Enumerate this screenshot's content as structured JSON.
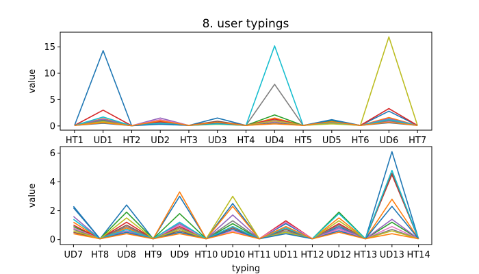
{
  "chart_data": {
    "type": "line",
    "title": "8. user typings",
    "palette": [
      "#1f77b4",
      "#ff7f0e",
      "#2ca02c",
      "#d62728",
      "#9467bd",
      "#8c564b",
      "#e377c2",
      "#7f7f7f",
      "#bcbd22",
      "#17becf"
    ],
    "subplots": [
      {
        "categories": [
          "HT1",
          "UD1",
          "HT2",
          "UD2",
          "HT3",
          "UD3",
          "HT4",
          "UD4",
          "HT5",
          "UD5",
          "HT6",
          "UD6",
          "HT7"
        ],
        "xlabel": "",
        "ylabel": "value",
        "ylim": [
          -0.8,
          17.8
        ],
        "yticks": [
          0,
          5,
          10,
          15
        ],
        "series": [
          {
            "values": [
              0.1,
              14.3,
              0.05,
              0.9,
              0.1,
              1.5,
              0.1,
              0.8,
              0.1,
              1.2,
              0.1,
              2.8,
              0.1
            ]
          },
          {
            "values": [
              0.1,
              1.4,
              0.05,
              0.7,
              0.1,
              0.5,
              0.1,
              1.5,
              0.1,
              0.8,
              0.1,
              1.6,
              0.1
            ]
          },
          {
            "values": [
              0.1,
              1.1,
              0.05,
              0.6,
              0.1,
              0.4,
              0.1,
              2.1,
              0.1,
              0.9,
              0.1,
              1.1,
              0.1
            ]
          },
          {
            "values": [
              0.1,
              3.0,
              0.05,
              0.8,
              0.1,
              0.6,
              0.1,
              1.3,
              0.1,
              0.7,
              0.1,
              3.3,
              0.1
            ]
          },
          {
            "values": [
              0.1,
              1.3,
              0.05,
              1.5,
              0.1,
              0.5,
              0.1,
              1.1,
              0.1,
              0.6,
              0.1,
              1.4,
              0.1
            ]
          },
          {
            "values": [
              0.1,
              0.7,
              0.05,
              0.5,
              0.1,
              0.9,
              0.1,
              0.8,
              0.1,
              0.5,
              0.1,
              0.9,
              0.1
            ]
          },
          {
            "values": [
              0.1,
              0.9,
              0.05,
              1.2,
              0.1,
              0.4,
              0.1,
              0.9,
              0.1,
              0.5,
              0.1,
              0.8,
              0.1
            ]
          },
          {
            "values": [
              0.1,
              1.0,
              0.05,
              0.6,
              0.1,
              0.5,
              0.1,
              7.9,
              0.1,
              0.6,
              0.1,
              1.0,
              0.1
            ]
          },
          {
            "values": [
              0.1,
              0.8,
              0.05,
              0.4,
              0.1,
              0.3,
              0.1,
              1.0,
              0.1,
              0.4,
              0.1,
              16.9,
              0.1
            ]
          },
          {
            "values": [
              0.1,
              1.7,
              0.05,
              0.5,
              0.1,
              0.4,
              0.1,
              15.2,
              0.1,
              0.7,
              0.1,
              1.2,
              0.1
            ]
          },
          {
            "values": [
              0.1,
              0.5,
              0.05,
              0.3,
              0.1,
              0.6,
              0.1,
              0.5,
              0.1,
              1.1,
              0.1,
              0.6,
              0.1
            ]
          },
          {
            "values": [
              0.1,
              0.6,
              0.05,
              1.0,
              0.1,
              0.7,
              0.1,
              0.4,
              0.1,
              0.8,
              0.1,
              0.7,
              0.1
            ]
          }
        ]
      },
      {
        "categories": [
          "UD7",
          "HT8",
          "UD8",
          "HT9",
          "UD9",
          "HT10",
          "UD10",
          "HT11",
          "UD11",
          "HT12",
          "UD12",
          "HT13",
          "UD13",
          "HT14"
        ],
        "xlabel": "typing",
        "ylabel": "value",
        "ylim": [
          -0.35,
          6.45
        ],
        "yticks": [
          0,
          2,
          4,
          6
        ],
        "series": [
          {
            "values": [
              2.3,
              0.05,
              2.4,
              0.05,
              3.0,
              0.05,
              2.5,
              0.05,
              1.1,
              0.05,
              0.9,
              0.05,
              6.1,
              0.05
            ]
          },
          {
            "values": [
              1.2,
              0.05,
              0.8,
              0.05,
              3.3,
              0.05,
              2.3,
              0.05,
              0.8,
              0.05,
              1.5,
              0.05,
              2.8,
              0.05
            ]
          },
          {
            "values": [
              0.9,
              0.05,
              1.9,
              0.05,
              1.8,
              0.05,
              1.1,
              0.05,
              0.5,
              0.05,
              1.9,
              0.05,
              1.2,
              0.05
            ]
          },
          {
            "values": [
              1.0,
              0.05,
              1.2,
              0.05,
              0.9,
              0.05,
              0.9,
              0.05,
              1.3,
              0.05,
              1.1,
              0.05,
              4.5,
              0.05
            ]
          },
          {
            "values": [
              1.6,
              0.05,
              0.6,
              0.05,
              1.1,
              0.05,
              1.7,
              0.05,
              0.9,
              0.05,
              0.8,
              0.05,
              1.4,
              0.05
            ]
          },
          {
            "values": [
              0.5,
              0.05,
              1.0,
              0.05,
              0.6,
              0.05,
              0.8,
              0.05,
              0.7,
              0.05,
              0.6,
              0.05,
              4.6,
              0.05
            ]
          },
          {
            "values": [
              0.8,
              0.05,
              0.5,
              0.05,
              1.0,
              0.05,
              0.6,
              0.05,
              1.2,
              0.05,
              0.7,
              0.05,
              0.9,
              0.05
            ]
          },
          {
            "values": [
              0.7,
              0.05,
              0.9,
              0.05,
              0.8,
              0.05,
              1.3,
              0.05,
              0.6,
              0.05,
              1.0,
              0.05,
              0.7,
              0.05
            ]
          },
          {
            "values": [
              0.6,
              0.05,
              1.5,
              0.05,
              0.7,
              0.05,
              3.0,
              0.05,
              0.5,
              0.05,
              1.3,
              0.05,
              0.6,
              0.05
            ]
          },
          {
            "values": [
              1.4,
              0.05,
              0.7,
              0.05,
              1.2,
              0.05,
              0.9,
              0.05,
              0.8,
              0.05,
              1.8,
              0.05,
              4.8,
              0.05
            ]
          },
          {
            "values": [
              2.2,
              0.05,
              0.5,
              0.05,
              0.5,
              0.05,
              0.7,
              0.05,
              0.4,
              0.05,
              0.6,
              0.05,
              2.3,
              0.05
            ]
          },
          {
            "values": [
              0.4,
              0.05,
              0.4,
              0.05,
              0.4,
              0.05,
              0.5,
              0.05,
              0.9,
              0.05,
              0.5,
              0.05,
              0.4,
              0.05
            ]
          }
        ]
      }
    ]
  }
}
